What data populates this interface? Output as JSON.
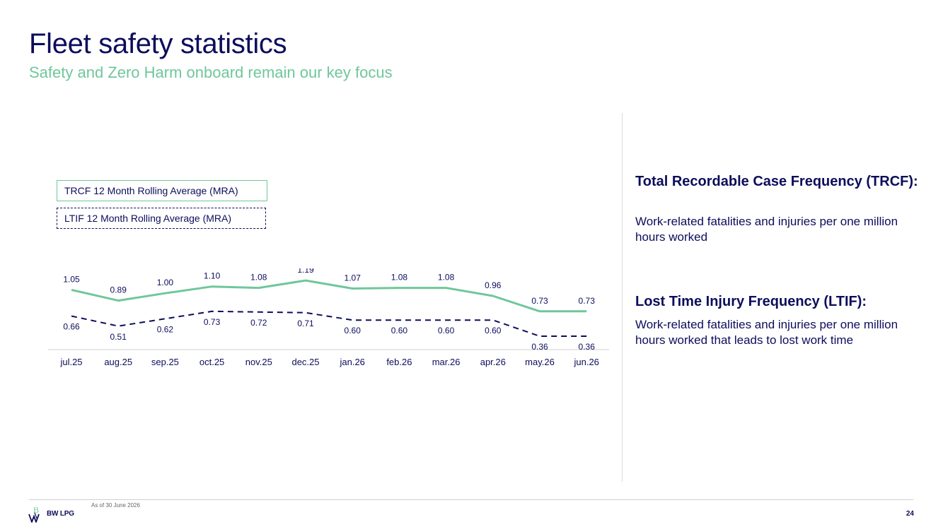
{
  "page": {
    "title": "Fleet safety statistics",
    "subtitle": "Safety and Zero Harm onboard remain our key focus"
  },
  "legend": {
    "trcf": "TRCF 12 Month Rolling Average (MRA)",
    "ltif": "LTIF 12 Month Rolling Average (MRA)"
  },
  "chart_data": {
    "type": "line",
    "categories": [
      "jul.25",
      "aug.25",
      "sep.25",
      "oct.25",
      "nov.25",
      "dec.25",
      "jan.26",
      "feb.26",
      "mar.26",
      "apr.26",
      "may.26",
      "jun.26"
    ],
    "series": [
      {
        "name": "TRCF 12 Month Rolling Average (MRA)",
        "values": [
          1.05,
          0.89,
          1.0,
          1.1,
          1.08,
          1.19,
          1.07,
          1.08,
          1.08,
          0.96,
          0.73,
          0.73
        ],
        "labels": [
          "1.05",
          "0.89",
          "1.00",
          "1.10",
          "1.08",
          "1.19",
          "1.07",
          "1.08",
          "1.08",
          "0.96",
          "0.73",
          "0.73"
        ],
        "color": "#6fc79a",
        "style": "solid"
      },
      {
        "name": "LTIF 12 Month Rolling Average (MRA)",
        "values": [
          0.66,
          0.51,
          0.62,
          0.73,
          0.72,
          0.71,
          0.6,
          0.6,
          0.6,
          0.6,
          0.36,
          0.36
        ],
        "labels": [
          "0.66",
          "0.51",
          "0.62",
          "0.73",
          "0.72",
          "0.71",
          "0.60",
          "0.60",
          "0.60",
          "0.60",
          "0.36",
          "0.36"
        ],
        "color": "#0c0d5c",
        "style": "dashed"
      }
    ],
    "title": "",
    "xlabel": "",
    "ylabel": "",
    "grid": false,
    "legend_position": "top-left"
  },
  "definitions": [
    {
      "heading": "Total Recordable Case Frequency (TRCF):",
      "text": "Work-related fatalities and injuries per one million hours worked"
    },
    {
      "heading": "Lost Time Injury Frequency (LTIF):",
      "text": "Work-related fatalities and injuries per one million hours worked that leads to lost work time"
    }
  ],
  "footer": {
    "logo_text": "BW LPG",
    "as_of": "As of 30 June 2026",
    "page_number": "24"
  },
  "colors": {
    "navy": "#0c0d5c",
    "green": "#6fc79a"
  }
}
